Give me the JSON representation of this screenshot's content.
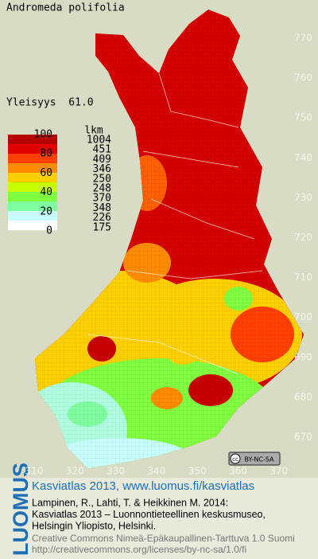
{
  "title": "Andromeda polifolia",
  "frequency": "Yleisyys  61.0",
  "legend": {
    "percent_labels": [
      100,
      80,
      60,
      40,
      20,
      0
    ],
    "count_header": "lkm",
    "counts": [
      1004,
      451,
      409,
      346,
      250,
      248,
      370,
      348,
      226,
      175
    ]
  },
  "map": {
    "northing_labels": [
      770,
      760,
      750,
      740,
      730,
      720,
      710,
      700,
      690,
      680,
      670
    ],
    "easting_labels": [
      310,
      320,
      330,
      340,
      350,
      360,
      370
    ]
  },
  "license_badge": "BY-NC-SA",
  "footer": {
    "brand": "LUOMUS",
    "heading": "Kasviatlas 2013, www.luomus.fi/kasviatlas",
    "citation": [
      "Lampinen, R., Lahti, T. & Heikkinen M. 2014:",
      "Kasviatlas 2013 – Luonnontieteellinen keskusmuseo,",
      "Helsingin Yliopisto, Helsinki."
    ],
    "license": [
      "Creative Commons Nimeä-Epäkaupallinen-Tarttuva 1.0 Suomi",
      "http://creativecommons.org/licenses/by-nc-sa/1.0/fi"
    ]
  }
}
